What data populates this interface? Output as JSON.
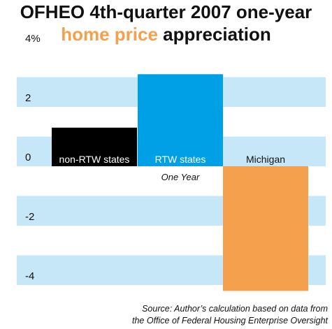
{
  "title": {
    "line1": "OFHEO 4th-quarter 2007 one-year",
    "line2_highlight": "home price",
    "line2_rest": " appreciation"
  },
  "source": {
    "line1": "Source: Author’s calculation based on data from",
    "line2": "the Office of Federal Housing Enterprise Oversight"
  },
  "colors": {
    "band": "#c6e7f7",
    "title_highlight": "#f5a04d"
  },
  "chart_data": {
    "type": "bar",
    "categories": [
      "non-RTW states",
      "RTW states",
      "Michigan"
    ],
    "values": [
      1.3,
      3.1,
      -4.2
    ],
    "colors": [
      "#000000",
      "#00a0e6",
      "#f5a04d"
    ],
    "label_colors": [
      "#ffffff",
      "#ffffff",
      "#111111"
    ],
    "xlabel": "One Year",
    "ylim": [
      -5,
      4.5
    ],
    "yticks": [
      {
        "value": 4,
        "label": "4%"
      },
      {
        "value": 2,
        "label": "2"
      },
      {
        "value": 0,
        "label": "0"
      },
      {
        "value": -2,
        "label": "-2"
      },
      {
        "value": -4,
        "label": "-4"
      }
    ],
    "grid": "alternating horizontal bands",
    "legend": "none"
  }
}
